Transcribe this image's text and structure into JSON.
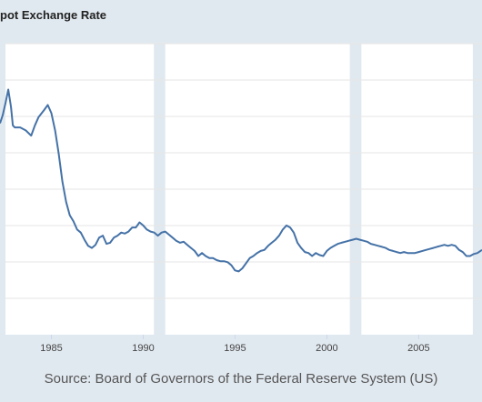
{
  "chart_data": {
    "type": "line",
    "title": "pot Exchange Rate",
    "source": "Source: Board of Governors of the Federal Reserve System (US)",
    "x_ticks": [
      1985,
      1990,
      1995,
      2000,
      2005
    ],
    "xlim": [
      1982.2,
      2008.45
    ],
    "y_grid_count": 7,
    "recessions": [
      [
        1990.58,
        1991.2
      ],
      [
        2001.25,
        2001.88
      ],
      [
        2007.95,
        2009.0
      ]
    ],
    "line_color": "#4572a7",
    "series": [
      {
        "values_relative_note": "",
        "x": [
          1982.2,
          1982.35,
          1982.5,
          1982.65,
          1982.8,
          1982.9,
          1983.0,
          1983.3,
          1983.6,
          1983.9,
          1984.1,
          1984.3,
          1984.6,
          1984.8,
          1985.0,
          1985.2,
          1985.4,
          1985.6,
          1985.8,
          1986.0,
          1986.2,
          1986.4,
          1986.6,
          1986.8,
          1987.0,
          1987.2,
          1987.4,
          1987.6,
          1987.8,
          1988.0,
          1988.2,
          1988.4,
          1988.6,
          1988.8,
          1989.0,
          1989.2,
          1989.4,
          1989.6,
          1989.8,
          1990.0,
          1990.2,
          1990.4,
          1990.6,
          1990.8,
          1991.0,
          1991.2,
          1991.4,
          1991.6,
          1991.8,
          1992.0,
          1992.2,
          1992.4,
          1992.6,
          1992.8,
          1993.0,
          1993.2,
          1993.4,
          1993.6,
          1993.8,
          1994.0,
          1994.2,
          1994.4,
          1994.6,
          1994.8,
          1995.0,
          1995.2,
          1995.4,
          1995.6,
          1995.8,
          1996.0,
          1996.2,
          1996.4,
          1996.6,
          1996.8,
          1997.0,
          1997.2,
          1997.4,
          1997.6,
          1997.8,
          1998.0,
          1998.2,
          1998.4,
          1998.6,
          1998.8,
          1999.0,
          1999.2,
          1999.4,
          1999.6,
          1999.8,
          2000.0,
          2000.2,
          2000.4,
          2000.6,
          2000.8,
          2001.0,
          2001.2,
          2001.4,
          2001.6,
          2001.8,
          2002.0,
          2002.2,
          2002.4,
          2002.6,
          2002.8,
          2003.0,
          2003.2,
          2003.4,
          2003.6,
          2003.8,
          2004.0,
          2004.2,
          2004.4,
          2004.6,
          2004.8,
          2005.0,
          2005.2,
          2005.4,
          2005.6,
          2005.8,
          2006.0,
          2006.2,
          2006.4,
          2006.6,
          2006.8,
          2007.0,
          2007.2,
          2007.4,
          2007.6,
          2007.8,
          2008.0,
          2008.2,
          2008.45
        ],
        "values": [
          2.62,
          2.7,
          2.82,
          2.95,
          2.78,
          2.6,
          2.58,
          2.58,
          2.55,
          2.5,
          2.6,
          2.68,
          2.75,
          2.8,
          2.72,
          2.55,
          2.32,
          2.05,
          1.85,
          1.72,
          1.66,
          1.58,
          1.55,
          1.48,
          1.42,
          1.4,
          1.43,
          1.5,
          1.52,
          1.44,
          1.45,
          1.5,
          1.52,
          1.55,
          1.54,
          1.56,
          1.6,
          1.6,
          1.65,
          1.62,
          1.58,
          1.56,
          1.55,
          1.52,
          1.55,
          1.56,
          1.53,
          1.5,
          1.47,
          1.45,
          1.46,
          1.43,
          1.4,
          1.37,
          1.32,
          1.35,
          1.32,
          1.3,
          1.3,
          1.28,
          1.27,
          1.27,
          1.26,
          1.23,
          1.18,
          1.17,
          1.2,
          1.25,
          1.3,
          1.32,
          1.35,
          1.37,
          1.38,
          1.42,
          1.45,
          1.48,
          1.52,
          1.58,
          1.62,
          1.6,
          1.55,
          1.45,
          1.4,
          1.36,
          1.35,
          1.32,
          1.35,
          1.33,
          1.32,
          1.37,
          1.4,
          1.42,
          1.44,
          1.45,
          1.46,
          1.47,
          1.48,
          1.49,
          1.48,
          1.47,
          1.46,
          1.44,
          1.43,
          1.42,
          1.41,
          1.4,
          1.38,
          1.37,
          1.36,
          1.35,
          1.36,
          1.35,
          1.35,
          1.35,
          1.36,
          1.37,
          1.38,
          1.39,
          1.4,
          1.41,
          1.42,
          1.43,
          1.42,
          1.43,
          1.42,
          1.38,
          1.36,
          1.32,
          1.32,
          1.34,
          1.35,
          1.38
        ]
      }
    ]
  }
}
